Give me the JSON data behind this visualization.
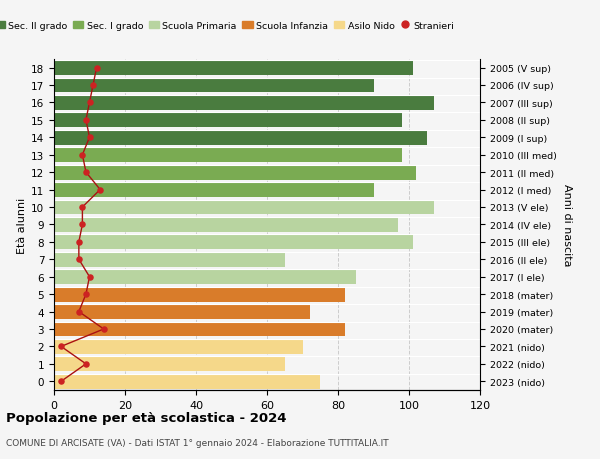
{
  "ages": [
    0,
    1,
    2,
    3,
    4,
    5,
    6,
    7,
    8,
    9,
    10,
    11,
    12,
    13,
    14,
    15,
    16,
    17,
    18
  ],
  "anni_nascita": [
    "2023 (nido)",
    "2022 (nido)",
    "2021 (nido)",
    "2020 (mater)",
    "2019 (mater)",
    "2018 (mater)",
    "2017 (I ele)",
    "2016 (II ele)",
    "2015 (III ele)",
    "2014 (IV ele)",
    "2013 (V ele)",
    "2012 (I med)",
    "2011 (II med)",
    "2010 (III med)",
    "2009 (I sup)",
    "2008 (II sup)",
    "2007 (III sup)",
    "2006 (IV sup)",
    "2005 (V sup)"
  ],
  "bar_values": [
    75,
    65,
    70,
    82,
    72,
    82,
    85,
    65,
    101,
    97,
    107,
    90,
    102,
    98,
    105,
    98,
    107,
    90,
    101
  ],
  "bar_colors": [
    "#f5d88a",
    "#f5d88a",
    "#f5d88a",
    "#d97c2a",
    "#d97c2a",
    "#d97c2a",
    "#b8d4a0",
    "#b8d4a0",
    "#b8d4a0",
    "#b8d4a0",
    "#b8d4a0",
    "#7aab52",
    "#7aab52",
    "#7aab52",
    "#4a7c3f",
    "#4a7c3f",
    "#4a7c3f",
    "#4a7c3f",
    "#4a7c3f"
  ],
  "stranieri_values": [
    2,
    9,
    2,
    14,
    7,
    9,
    10,
    7,
    7,
    8,
    8,
    13,
    9,
    8,
    10,
    9,
    10,
    11,
    12
  ],
  "legend_labels": [
    "Sec. II grado",
    "Sec. I grado",
    "Scuola Primaria",
    "Scuola Infanzia",
    "Asilo Nido",
    "Stranieri"
  ],
  "legend_colors": [
    "#4a7c3f",
    "#7aab52",
    "#b8d4a0",
    "#d97c2a",
    "#f5d88a",
    "#cc2222"
  ],
  "title": "Popolazione per età scolastica - 2024",
  "subtitle": "COMUNE DI ARCISATE (VA) - Dati ISTAT 1° gennaio 2024 - Elaborazione TUTTITALIA.IT",
  "ylabel": "Età alunni",
  "ylabel2": "Anni di nascita",
  "xlim": [
    0,
    120
  ],
  "xticks": [
    0,
    20,
    40,
    60,
    80,
    100,
    120
  ],
  "bg_color": "#f5f5f5",
  "grid_color": "#cccccc"
}
